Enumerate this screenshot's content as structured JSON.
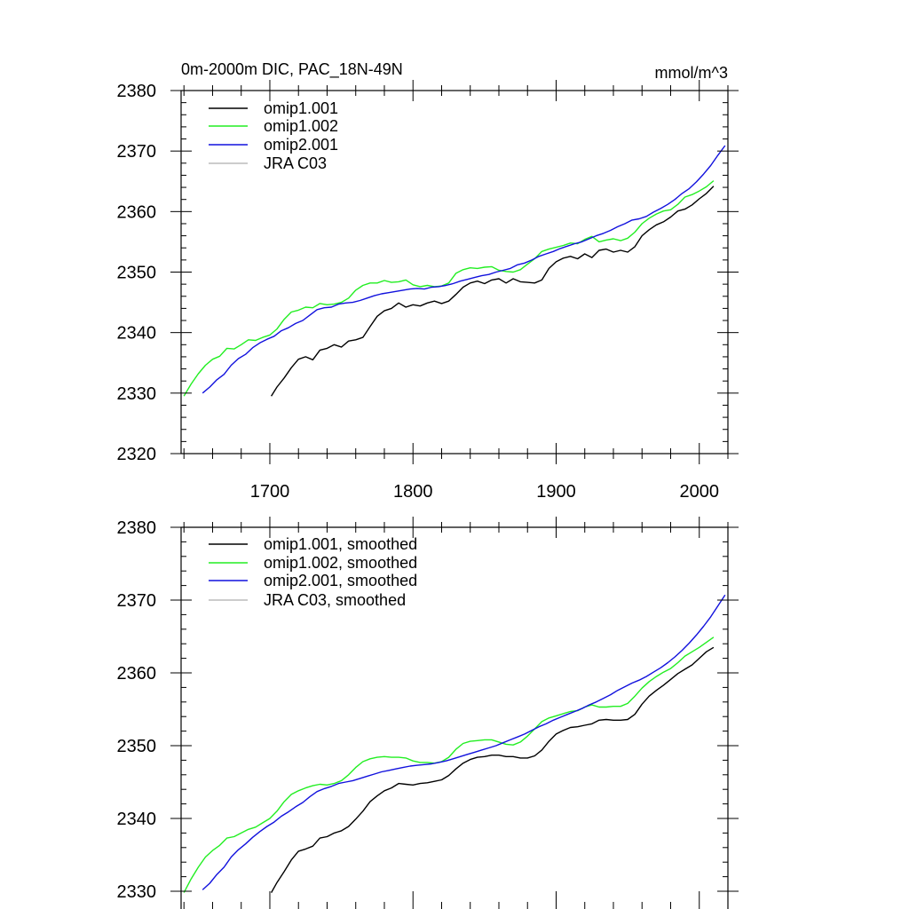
{
  "colors": {
    "omip1_001": "#000000",
    "omip1_002": "#22ee22",
    "omip2_001": "#1111dd",
    "jra_c03": "#bbbbbb",
    "axis": "#000000",
    "background": "#ffffff"
  },
  "chart_data": [
    {
      "type": "line",
      "title": "0m-2000m DIC, PAC_18N-49N",
      "units": "mmol/m^3",
      "xlabel": "",
      "ylabel": "",
      "xlim": [
        1638,
        2020
      ],
      "ylim": [
        2320,
        2380
      ],
      "xticks": [
        1700,
        1800,
        1900,
        2000
      ],
      "yticks": [
        2320,
        2330,
        2340,
        2350,
        2360,
        2370,
        2380
      ],
      "x_tick_labels": [
        "1700",
        "1800",
        "1900",
        "2000"
      ],
      "y_tick_labels": [
        "2320",
        "2330",
        "2340",
        "2350",
        "2360",
        "2370",
        "2380"
      ],
      "grid": false,
      "legend_position": "top-left",
      "series": [
        {
          "key": "omip1_001",
          "name": "omip1.001",
          "x": [
            1701,
            1705,
            1710,
            1715,
            1720,
            1725,
            1730,
            1735,
            1740,
            1745,
            1750,
            1755,
            1760,
            1765,
            1770,
            1775,
            1780,
            1785,
            1790,
            1795,
            1800,
            1805,
            1810,
            1815,
            1820,
            1825,
            1830,
            1835,
            1840,
            1845,
            1850,
            1855,
            1860,
            1865,
            1870,
            1875,
            1880,
            1885,
            1890,
            1895,
            1900,
            1905,
            1910,
            1915,
            1920,
            1925,
            1930,
            1935,
            1940,
            1945,
            1950,
            1955,
            1960,
            1965,
            1970,
            1975,
            1980,
            1985,
            1990,
            1995,
            2000,
            2005,
            2010
          ],
          "values": [
            2329.5,
            2331.0,
            2332.5,
            2334.2,
            2335.6,
            2336.0,
            2335.5,
            2337.1,
            2337.4,
            2338.0,
            2337.6,
            2338.6,
            2338.8,
            2339.2,
            2341.0,
            2342.7,
            2343.6,
            2344.0,
            2344.9,
            2344.2,
            2344.6,
            2344.4,
            2344.9,
            2345.2,
            2344.8,
            2345.2,
            2346.3,
            2347.5,
            2348.2,
            2348.5,
            2348.1,
            2348.7,
            2348.9,
            2348.2,
            2348.9,
            2348.4,
            2348.3,
            2348.2,
            2348.7,
            2350.6,
            2351.7,
            2352.3,
            2352.6,
            2352.2,
            2353.0,
            2352.4,
            2353.6,
            2353.8,
            2353.3,
            2353.6,
            2353.3,
            2354.2,
            2356.0,
            2357.0,
            2357.8,
            2358.3,
            2359.1,
            2360.1,
            2360.4,
            2361.1,
            2362.1,
            2363.0,
            2364.2
          ]
        },
        {
          "key": "omip1_002",
          "name": "omip1.002",
          "x": [
            1640,
            1645,
            1650,
            1655,
            1660,
            1665,
            1670,
            1675,
            1680,
            1685,
            1690,
            1695,
            1700,
            1705,
            1710,
            1715,
            1720,
            1725,
            1730,
            1735,
            1740,
            1745,
            1750,
            1755,
            1760,
            1765,
            1770,
            1775,
            1780,
            1785,
            1790,
            1795,
            1800,
            1805,
            1810,
            1815,
            1820,
            1825,
            1830,
            1835,
            1840,
            1845,
            1850,
            1855,
            1860,
            1865,
            1870,
            1875,
            1880,
            1885,
            1890,
            1895,
            1900,
            1905,
            1910,
            1915,
            1920,
            1925,
            1930,
            1935,
            1940,
            1945,
            1950,
            1955,
            1960,
            1965,
            1970,
            1975,
            1980,
            1985,
            1990,
            1995,
            2000,
            2005,
            2010
          ],
          "values": [
            2329.5,
            2331.5,
            2333.2,
            2334.6,
            2335.6,
            2336.1,
            2337.4,
            2337.3,
            2338.0,
            2338.8,
            2338.7,
            2339.2,
            2339.6,
            2340.6,
            2342.2,
            2343.4,
            2343.7,
            2344.2,
            2344.1,
            2344.8,
            2344.6,
            2344.7,
            2345.0,
            2345.7,
            2347.0,
            2347.8,
            2348.2,
            2348.2,
            2348.6,
            2348.3,
            2348.4,
            2348.7,
            2347.9,
            2347.6,
            2347.8,
            2347.6,
            2347.7,
            2348.2,
            2349.8,
            2350.4,
            2350.7,
            2350.6,
            2350.8,
            2350.9,
            2350.3,
            2350.1,
            2350.0,
            2350.4,
            2351.3,
            2352.2,
            2353.4,
            2353.8,
            2354.1,
            2354.4,
            2354.8,
            2354.7,
            2355.4,
            2355.9,
            2355.0,
            2355.3,
            2355.5,
            2355.2,
            2355.6,
            2356.6,
            2358.0,
            2358.9,
            2359.6,
            2360.1,
            2360.3,
            2361.2,
            2362.4,
            2362.8,
            2363.4,
            2364.1,
            2365.1
          ]
        },
        {
          "key": "omip2_001",
          "name": "omip2.001",
          "x": [
            1653,
            1658,
            1663,
            1668,
            1673,
            1678,
            1683,
            1688,
            1693,
            1698,
            1703,
            1708,
            1713,
            1718,
            1723,
            1728,
            1733,
            1738,
            1743,
            1748,
            1753,
            1758,
            1763,
            1768,
            1773,
            1778,
            1783,
            1788,
            1793,
            1798,
            1803,
            1808,
            1813,
            1818,
            1823,
            1828,
            1833,
            1838,
            1843,
            1848,
            1853,
            1858,
            1863,
            1868,
            1873,
            1878,
            1883,
            1888,
            1893,
            1898,
            1903,
            1908,
            1913,
            1918,
            1923,
            1928,
            1933,
            1938,
            1943,
            1948,
            1953,
            1958,
            1963,
            1968,
            1973,
            1978,
            1983,
            1988,
            1993,
            1998,
            2003,
            2008,
            2013,
            2018
          ],
          "values": [
            2330.0,
            2331.0,
            2332.2,
            2333.1,
            2334.6,
            2335.7,
            2336.4,
            2337.5,
            2338.3,
            2338.9,
            2339.4,
            2340.3,
            2340.8,
            2341.5,
            2342.0,
            2342.9,
            2343.8,
            2344.1,
            2344.2,
            2344.7,
            2344.9,
            2345.0,
            2345.3,
            2345.7,
            2346.1,
            2346.4,
            2346.6,
            2346.8,
            2347.0,
            2347.2,
            2347.3,
            2347.2,
            2347.5,
            2347.6,
            2347.8,
            2348.1,
            2348.5,
            2348.8,
            2349.1,
            2349.4,
            2349.6,
            2350.0,
            2350.3,
            2350.6,
            2351.2,
            2351.5,
            2352.0,
            2352.6,
            2353.0,
            2353.4,
            2353.9,
            2354.3,
            2354.7,
            2355.0,
            2355.5,
            2356.0,
            2356.4,
            2356.9,
            2357.5,
            2358.0,
            2358.6,
            2358.8,
            2359.2,
            2359.9,
            2360.5,
            2361.2,
            2362.0,
            2363.0,
            2363.8,
            2364.9,
            2366.2,
            2367.6,
            2369.3,
            2370.9
          ]
        },
        {
          "key": "jra_c03",
          "name": "JRA C03",
          "x": [],
          "values": []
        }
      ]
    },
    {
      "type": "line",
      "title": "",
      "xlim": [
        1638,
        2020
      ],
      "ylim": [
        2330,
        2380
      ],
      "xticks": [
        1700,
        1800,
        1900,
        2000
      ],
      "yticks": [
        2330,
        2340,
        2350,
        2360,
        2370,
        2380
      ],
      "x_tick_labels": [],
      "y_tick_labels": [
        "2330",
        "2340",
        "2350",
        "2360",
        "2370",
        "2380"
      ],
      "grid": false,
      "legend_position": "top-left",
      "series": [
        {
          "key": "omip1_001",
          "name": "omip1.001, smoothed",
          "x": [
            1701,
            1705,
            1710,
            1715,
            1720,
            1725,
            1730,
            1735,
            1740,
            1745,
            1750,
            1755,
            1760,
            1765,
            1770,
            1775,
            1780,
            1785,
            1790,
            1795,
            1800,
            1805,
            1810,
            1815,
            1820,
            1825,
            1830,
            1835,
            1840,
            1845,
            1850,
            1855,
            1860,
            1865,
            1870,
            1875,
            1880,
            1885,
            1890,
            1895,
            1900,
            1905,
            1910,
            1915,
            1920,
            1925,
            1930,
            1935,
            1940,
            1945,
            1950,
            1955,
            1960,
            1965,
            1970,
            1975,
            1980,
            1985,
            1990,
            1995,
            2000,
            2005,
            2010
          ],
          "values": [
            2329.8,
            2331.2,
            2332.7,
            2334.3,
            2335.5,
            2335.8,
            2336.2,
            2337.3,
            2337.5,
            2338.0,
            2338.3,
            2338.9,
            2339.9,
            2341.0,
            2342.3,
            2343.1,
            2343.8,
            2344.2,
            2344.8,
            2344.7,
            2344.6,
            2344.8,
            2344.9,
            2345.1,
            2345.3,
            2345.9,
            2346.8,
            2347.6,
            2348.1,
            2348.4,
            2348.5,
            2348.7,
            2348.7,
            2348.5,
            2348.5,
            2348.3,
            2348.3,
            2348.6,
            2349.4,
            2350.6,
            2351.6,
            2352.1,
            2352.5,
            2352.6,
            2352.8,
            2353.0,
            2353.5,
            2353.6,
            2353.5,
            2353.5,
            2353.6,
            2354.3,
            2355.7,
            2356.8,
            2357.6,
            2358.3,
            2359.1,
            2359.9,
            2360.5,
            2361.1,
            2362.0,
            2362.9,
            2363.5
          ]
        },
        {
          "key": "omip1_002",
          "name": "omip1.002, smoothed",
          "x": [
            1640,
            1645,
            1650,
            1655,
            1660,
            1665,
            1670,
            1675,
            1680,
            1685,
            1690,
            1695,
            1700,
            1705,
            1710,
            1715,
            1720,
            1725,
            1730,
            1735,
            1740,
            1745,
            1750,
            1755,
            1760,
            1765,
            1770,
            1775,
            1780,
            1785,
            1790,
            1795,
            1800,
            1805,
            1810,
            1815,
            1820,
            1825,
            1830,
            1835,
            1840,
            1845,
            1850,
            1855,
            1860,
            1865,
            1870,
            1875,
            1880,
            1885,
            1890,
            1895,
            1900,
            1905,
            1910,
            1915,
            1920,
            1925,
            1930,
            1935,
            1940,
            1945,
            1950,
            1955,
            1960,
            1965,
            1970,
            1975,
            1980,
            1985,
            1990,
            1995,
            2000,
            2005,
            2010
          ],
          "values": [
            2329.8,
            2331.7,
            2333.3,
            2334.7,
            2335.6,
            2336.3,
            2337.3,
            2337.5,
            2338.0,
            2338.5,
            2338.8,
            2339.4,
            2340.0,
            2341.0,
            2342.3,
            2343.3,
            2343.8,
            2344.2,
            2344.5,
            2344.7,
            2344.6,
            2344.8,
            2345.2,
            2346.0,
            2347.0,
            2347.8,
            2348.2,
            2348.4,
            2348.5,
            2348.4,
            2348.4,
            2348.3,
            2347.9,
            2347.7,
            2347.7,
            2347.6,
            2347.8,
            2348.4,
            2349.5,
            2350.3,
            2350.6,
            2350.7,
            2350.8,
            2350.8,
            2350.5,
            2350.2,
            2350.1,
            2350.5,
            2351.3,
            2352.3,
            2353.3,
            2353.8,
            2354.1,
            2354.4,
            2354.7,
            2354.8,
            2355.3,
            2355.6,
            2355.3,
            2355.3,
            2355.4,
            2355.4,
            2355.8,
            2356.8,
            2357.9,
            2358.8,
            2359.5,
            2360.1,
            2360.6,
            2361.4,
            2362.3,
            2362.9,
            2363.5,
            2364.2,
            2364.9
          ]
        },
        {
          "key": "omip2_001",
          "name": "omip2.001, smoothed",
          "x": [
            1653,
            1658,
            1663,
            1668,
            1673,
            1678,
            1683,
            1688,
            1693,
            1698,
            1703,
            1708,
            1713,
            1718,
            1723,
            1728,
            1733,
            1738,
            1743,
            1748,
            1753,
            1758,
            1763,
            1768,
            1773,
            1778,
            1783,
            1788,
            1793,
            1798,
            1803,
            1808,
            1813,
            1818,
            1823,
            1828,
            1833,
            1838,
            1843,
            1848,
            1853,
            1858,
            1863,
            1868,
            1873,
            1878,
            1883,
            1888,
            1893,
            1898,
            1903,
            1908,
            1913,
            1918,
            1923,
            1928,
            1933,
            1938,
            1943,
            1948,
            1953,
            1958,
            1963,
            1968,
            1973,
            1978,
            1983,
            1988,
            1993,
            1998,
            2003,
            2008,
            2013,
            2018
          ],
          "values": [
            2330.2,
            2331.1,
            2332.3,
            2333.3,
            2334.7,
            2335.7,
            2336.5,
            2337.4,
            2338.2,
            2338.9,
            2339.5,
            2340.3,
            2340.9,
            2341.6,
            2342.2,
            2343.0,
            2343.7,
            2344.1,
            2344.4,
            2344.8,
            2345.0,
            2345.2,
            2345.5,
            2345.8,
            2346.1,
            2346.4,
            2346.6,
            2346.8,
            2347.0,
            2347.2,
            2347.3,
            2347.4,
            2347.5,
            2347.7,
            2347.9,
            2348.2,
            2348.5,
            2348.8,
            2349.1,
            2349.4,
            2349.7,
            2350.0,
            2350.4,
            2350.8,
            2351.2,
            2351.6,
            2352.1,
            2352.6,
            2353.0,
            2353.5,
            2353.9,
            2354.3,
            2354.7,
            2355.1,
            2355.6,
            2356.0,
            2356.5,
            2357.0,
            2357.6,
            2358.1,
            2358.6,
            2359.0,
            2359.5,
            2360.1,
            2360.7,
            2361.4,
            2362.2,
            2363.1,
            2364.1,
            2365.2,
            2366.4,
            2367.7,
            2369.2,
            2370.7
          ]
        },
        {
          "key": "jra_c03",
          "name": "JRA C03, smoothed",
          "x": [],
          "values": []
        }
      ]
    }
  ]
}
